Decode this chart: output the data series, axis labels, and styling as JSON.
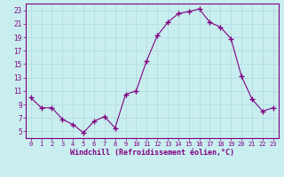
{
  "x": [
    0,
    1,
    2,
    3,
    4,
    5,
    6,
    7,
    8,
    9,
    10,
    11,
    12,
    13,
    14,
    15,
    16,
    17,
    18,
    19,
    20,
    21,
    22,
    23
  ],
  "y": [
    10.0,
    8.5,
    8.5,
    6.8,
    6.0,
    4.8,
    6.5,
    7.2,
    5.5,
    10.5,
    11.0,
    15.5,
    19.2,
    21.2,
    22.5,
    22.8,
    23.2,
    21.2,
    20.5,
    18.8,
    13.2,
    9.8,
    8.0,
    8.5
  ],
  "xlabel": "Windchill (Refroidissement éolien,°C)",
  "xlim": [
    -0.5,
    23.5
  ],
  "ylim": [
    4,
    24
  ],
  "yticks": [
    5,
    7,
    9,
    11,
    13,
    15,
    17,
    19,
    21,
    23
  ],
  "xticks": [
    0,
    1,
    2,
    3,
    4,
    5,
    6,
    7,
    8,
    9,
    10,
    11,
    12,
    13,
    14,
    15,
    16,
    17,
    18,
    19,
    20,
    21,
    22,
    23
  ],
  "line_color": "#800080",
  "marker": "+",
  "marker_size": 4,
  "bg_color": "#c8eef0",
  "grid_color": "#b0d8dc",
  "tick_color": "#800080",
  "label_color": "#800080",
  "spine_color": "#800080"
}
